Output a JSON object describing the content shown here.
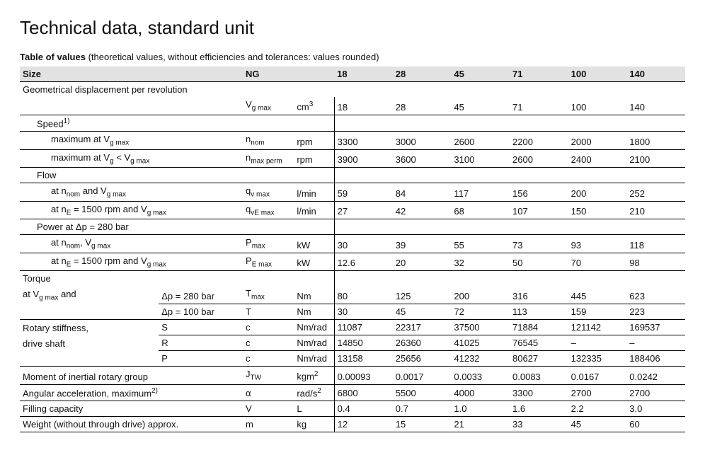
{
  "title": "Technical data, standard unit",
  "caption_bold": "Table of values",
  "caption_rest": " (theoretical values, without efficiencies and tolerances: values rounded)",
  "header": {
    "size": "Size",
    "ng": "NG",
    "cols": [
      "18",
      "28",
      "45",
      "71",
      "100",
      "140"
    ]
  },
  "rows": {
    "geo_disp": {
      "label": "Geometrical displacement per revolution",
      "sym_html": "V<span class='sub'>g max</span>",
      "unit_html": "cm<span class='sup'>3</span>",
      "vals": [
        "18",
        "28",
        "45",
        "71",
        "100",
        "140"
      ]
    },
    "speed_hdr": "Speed",
    "speed_sup": "1)",
    "speed_max_vgmax": {
      "label_html": "maximum at V<span class='sub'>g max</span>",
      "sym_html": "n<span class='sub'>nom</span>",
      "unit": "rpm",
      "vals": [
        "3300",
        "3000",
        "2600",
        "2200",
        "2000",
        "1800"
      ]
    },
    "speed_max_lt": {
      "label_html": "maximum at V<span class='sub'>g</span> &lt; V<span class='sub'>g max</span>",
      "sym_html": "n<span class='sub'>max perm</span>",
      "unit": "rpm",
      "vals": [
        "3900",
        "3600",
        "3100",
        "2600",
        "2400",
        "2100"
      ]
    },
    "flow_hdr": "Flow",
    "flow_nnom": {
      "label_html": "at n<span class='sub'>nom</span> and V<span class='sub'>g max</span>",
      "sym_html": "q<span class='sub'>v max</span>",
      "unit": "l/min",
      "vals": [
        "59",
        "84",
        "117",
        "156",
        "200",
        "252"
      ]
    },
    "flow_ne": {
      "label_html": "at n<span class='sub'>E</span> = 1500 rpm and V<span class='sub'>g max</span>",
      "sym_html": "q<span class='sub'>vE max</span>",
      "unit": "l/min",
      "vals": [
        "27",
        "42",
        "68",
        "107",
        "150",
        "210"
      ]
    },
    "power_hdr_html": "Power at &Delta;p = 280 bar",
    "power_nnom": {
      "label_html": "at n<span class='sub'>nom</span>, V<span class='sub'>g max</span>",
      "sym_html": "P<span class='sub'>max</span>",
      "unit": "kW",
      "vals": [
        "30",
        "39",
        "55",
        "73",
        "93",
        "118"
      ]
    },
    "power_ne": {
      "label_html": "at n<span class='sub'>E</span> = 1500 rpm and V<span class='sub'>g max</span>",
      "sym_html": "P<span class='sub'>E max</span>",
      "unit": "kW",
      "vals": [
        "12.6",
        "20",
        "32",
        "50",
        "70",
        "98"
      ]
    },
    "torque_hdr": "Torque",
    "torque_280": {
      "desc_html": "at V<span class='sub'>g max</span> and",
      "cond_html": "&Delta;p = 280 bar",
      "sym_html": "T<span class='sub'>max</span>",
      "unit": "Nm",
      "vals": [
        "80",
        "125",
        "200",
        "316",
        "445",
        "623"
      ]
    },
    "torque_100": {
      "cond_html": "&Delta;p = 100 bar",
      "sym": "T",
      "unit": "Nm",
      "vals": [
        "30",
        "45",
        "72",
        "113",
        "159",
        "223"
      ]
    },
    "stiff_s": {
      "desc": "Rotary stiffness,",
      "cond": "S",
      "sym": "c",
      "unit": "Nm/rad",
      "vals": [
        "11087",
        "22317",
        "37500",
        "71884",
        "121142",
        "169537"
      ]
    },
    "stiff_r": {
      "desc": "drive shaft",
      "cond": "R",
      "sym": "c",
      "unit": "Nm/rad",
      "vals": [
        "14850",
        "26360",
        "41025",
        "76545",
        "–",
        "–"
      ]
    },
    "stiff_p": {
      "cond": "P",
      "sym": "c",
      "unit": "Nm/rad",
      "vals": [
        "13158",
        "25656",
        "41232",
        "80627",
        "132335",
        "188406"
      ]
    },
    "moment": {
      "desc": "Moment of inertial rotary group",
      "sym_html": "J<span class='sub'>TW</span>",
      "unit_html": "kgm<span class='sup'>2</span>",
      "vals": [
        "0.00093",
        "0.0017",
        "0.0033",
        "0.0083",
        "0.0167",
        "0.0242"
      ]
    },
    "ang_acc": {
      "desc_html": "Angular acceleration, maximum<span class='sup'>2)</span>",
      "sym": "α",
      "unit_html": "rad/s<span class='sup'>2</span>",
      "vals": [
        "6800",
        "5500",
        "4000",
        "3300",
        "2700",
        "2700"
      ]
    },
    "fill": {
      "desc": "Filling capacity",
      "sym": "V",
      "unit": "L",
      "vals": [
        "0.4",
        "0.7",
        "1.0",
        "1.6",
        "2.2",
        "3.0"
      ]
    },
    "weight": {
      "desc": "Weight (without through drive) approx.",
      "sym": "m",
      "unit": "kg",
      "vals": [
        "12",
        "15",
        "21",
        "33",
        "45",
        "60"
      ]
    }
  }
}
